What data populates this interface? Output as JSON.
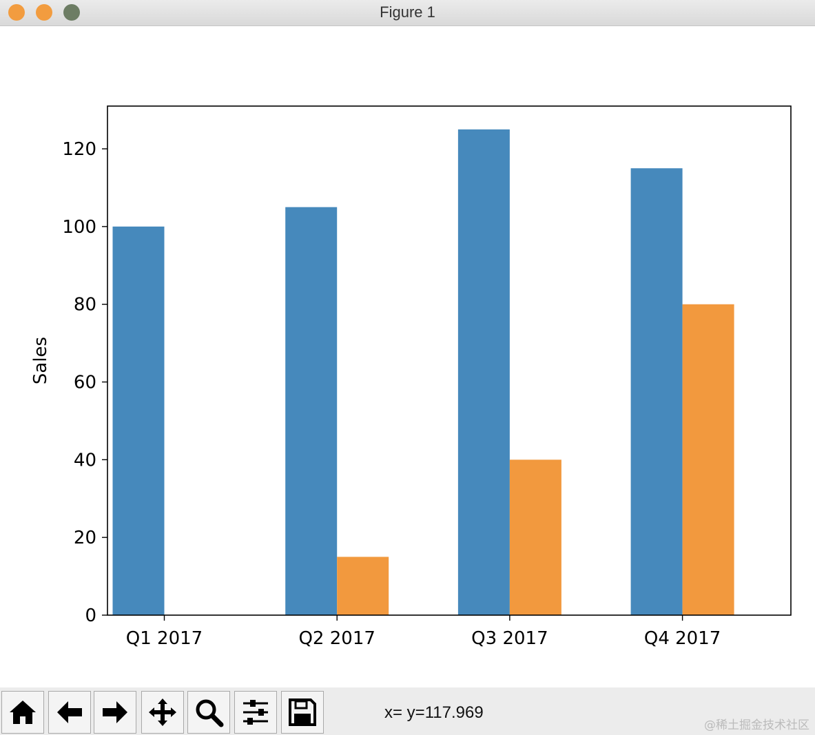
{
  "window": {
    "title": "Figure 1"
  },
  "chart_data": {
    "type": "bar",
    "title": "",
    "xlabel": "",
    "ylabel": "Sales",
    "categories": [
      "Q1 2017",
      "Q2 2017",
      "Q3 2017",
      "Q4 2017"
    ],
    "series": [
      {
        "values": [
          100,
          105,
          125,
          115
        ],
        "color": "#4689bc"
      },
      {
        "values": [
          0,
          15,
          40,
          80
        ],
        "color": "#f2993e"
      }
    ],
    "ylim": [
      0,
      131
    ],
    "yticks": [
      0,
      20,
      40,
      60,
      80,
      100,
      120
    ],
    "grid": false
  },
  "toolbar": {
    "buttons": [
      {
        "name": "home-button",
        "icon": "home-icon"
      },
      {
        "name": "back-button",
        "icon": "arrow-left-icon"
      },
      {
        "name": "forward-button",
        "icon": "arrow-right-icon"
      },
      {
        "name": "pan-button",
        "icon": "move-icon"
      },
      {
        "name": "zoom-button",
        "icon": "magnifier-icon"
      },
      {
        "name": "configure-subplots-button",
        "icon": "sliders-icon"
      },
      {
        "name": "save-button",
        "icon": "floppy-disk-icon"
      }
    ],
    "coords_text": "x= y=117.969"
  },
  "watermark": "@稀土掘金技术社区"
}
